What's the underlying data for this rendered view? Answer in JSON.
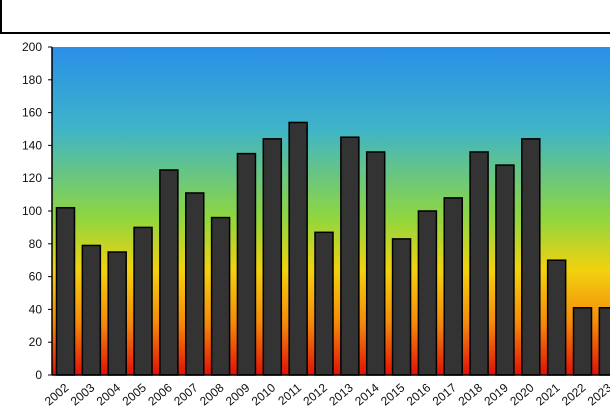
{
  "chart_data": {
    "type": "bar",
    "title": "",
    "xlabel": "",
    "ylabel": "",
    "ylim": [
      0,
      200
    ],
    "yticks": [
      0,
      20,
      40,
      60,
      80,
      100,
      120,
      140,
      160,
      180,
      200
    ],
    "grid": false,
    "legend": "none",
    "background": "vertical gradient blue-green-yellow-orange-red",
    "colors": {
      "bar": "#333333",
      "gradient": [
        "#2a8fe8",
        "#3fb4c8",
        "#8fd640",
        "#f2d20e",
        "#f58a0a",
        "#e01008"
      ]
    },
    "categories": [
      "2002",
      "2003",
      "2004",
      "2005",
      "2006",
      "2007",
      "2008",
      "2009",
      "2010",
      "2011",
      "2012",
      "2013",
      "2014",
      "2015",
      "2016",
      "2017",
      "2018",
      "2019",
      "2020",
      "2021",
      "2022",
      "2023"
    ],
    "values": [
      102,
      79,
      75,
      90,
      125,
      111,
      96,
      135,
      144,
      154,
      87,
      145,
      136,
      83,
      100,
      108,
      136,
      128,
      144,
      70,
      41,
      41
    ]
  }
}
